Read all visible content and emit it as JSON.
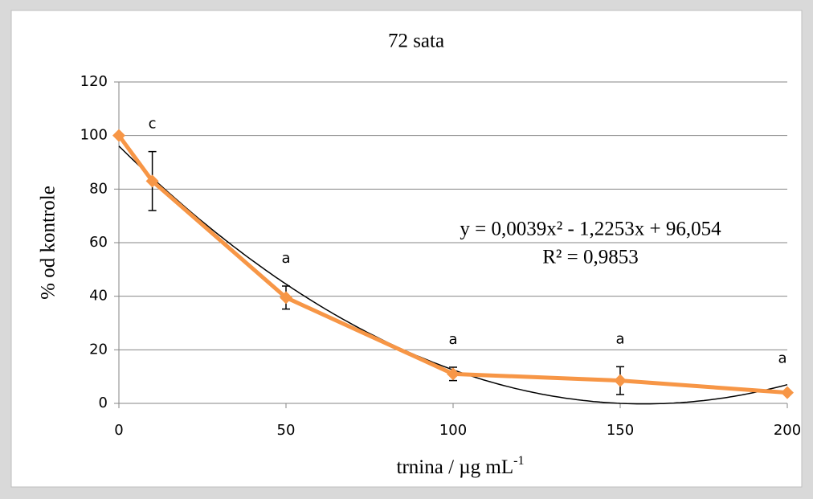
{
  "chart_data": {
    "type": "line",
    "title": "72 sata",
    "x_label": "trnina / µg mL",
    "x_label_sup": "-1",
    "y_label": "% od kontrole",
    "x": [
      0,
      10,
      50,
      100,
      150,
      200
    ],
    "series": [
      {
        "name": "72 sata",
        "color": "#f79646",
        "values": [
          100,
          83,
          39.5,
          11,
          8.5,
          4
        ],
        "errors": [
          0,
          11,
          4.3,
          2.5,
          5.2,
          0
        ],
        "point_labels": [
          null,
          "c",
          "a",
          "a",
          "a",
          "a"
        ]
      }
    ],
    "trendline": {
      "coefficients": [
        0.0039,
        -1.2253,
        96.054
      ],
      "color": "#000000",
      "equation": "y = 0,0039x² - 1,2253x + 96,054",
      "r2": "R² = 0,9853"
    },
    "xlim": [
      0,
      200
    ],
    "xticks": [
      0,
      50,
      100,
      150,
      200
    ],
    "ylim": [
      0,
      120
    ],
    "yticks": [
      0,
      20,
      40,
      60,
      80,
      100,
      120
    ],
    "grid": true
  }
}
